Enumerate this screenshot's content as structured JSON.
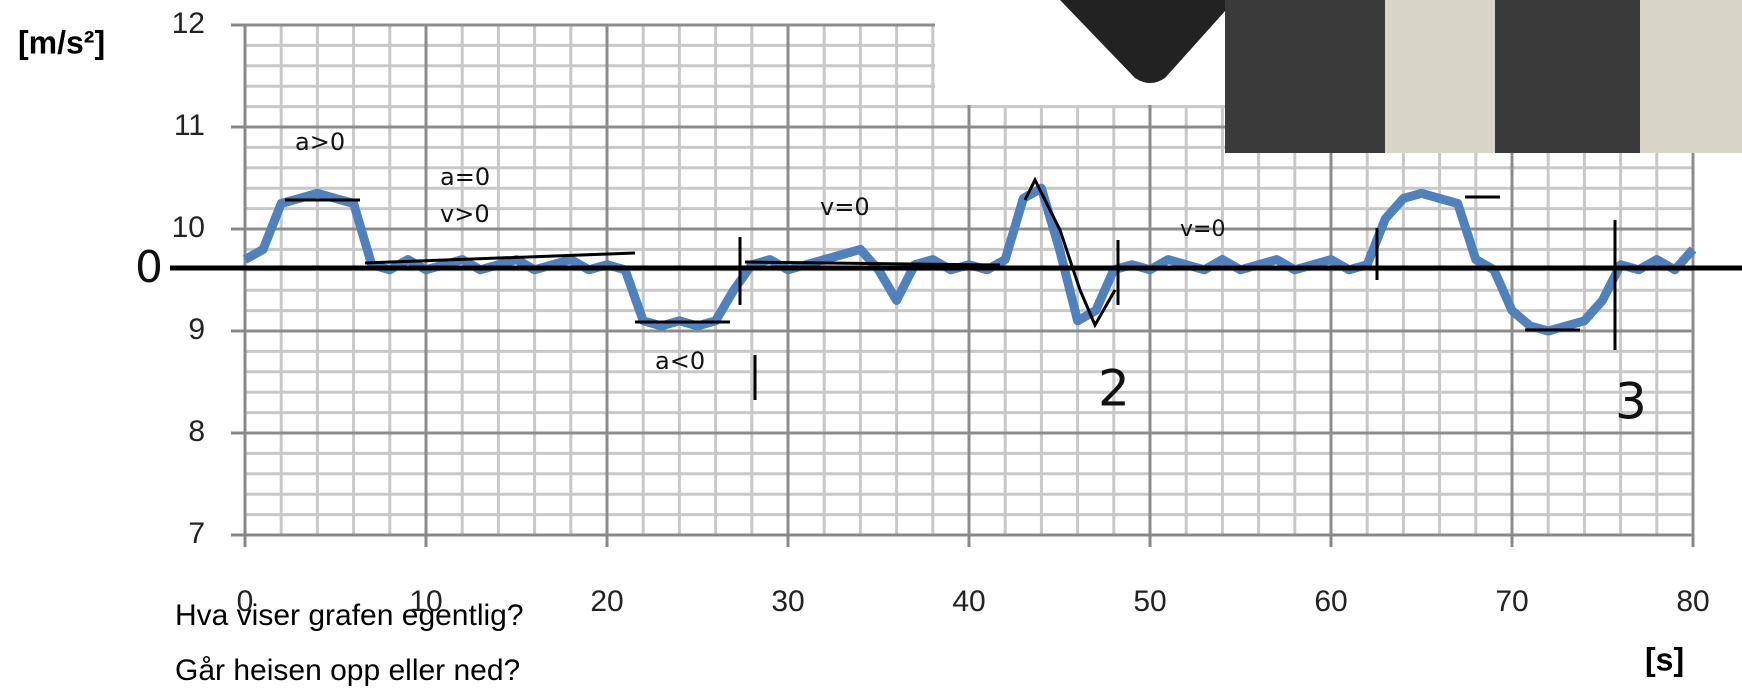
{
  "chart_data": {
    "type": "line",
    "y_label": "[m/s²]",
    "x_label": "[s]",
    "x": [
      0,
      1,
      2,
      3,
      4,
      5,
      6,
      7,
      8,
      9,
      10,
      11,
      12,
      13,
      14,
      15,
      16,
      17,
      18,
      19,
      20,
      21,
      22,
      23,
      24,
      25,
      26,
      27,
      28,
      29,
      30,
      31,
      32,
      33,
      34,
      35,
      36,
      37,
      38,
      39,
      40,
      41,
      42,
      43,
      44,
      45,
      46,
      47,
      48,
      49,
      50,
      51,
      52,
      53,
      54,
      55,
      56,
      57,
      58,
      59,
      60,
      61,
      62,
      63,
      64,
      65,
      66,
      67,
      68,
      69,
      70,
      71,
      72,
      73,
      74,
      75,
      76,
      77,
      78,
      79,
      80
    ],
    "series": [
      {
        "color": "#4f81bd",
        "values": [
          9.7,
          9.8,
          10.25,
          10.3,
          10.35,
          10.3,
          10.25,
          9.65,
          9.6,
          9.7,
          9.6,
          9.65,
          9.7,
          9.6,
          9.65,
          9.7,
          9.6,
          9.65,
          9.7,
          9.6,
          9.65,
          9.6,
          9.1,
          9.05,
          9.1,
          9.05,
          9.1,
          9.4,
          9.65,
          9.7,
          9.6,
          9.65,
          9.7,
          9.75,
          9.8,
          9.6,
          9.3,
          9.65,
          9.7,
          9.6,
          9.65,
          9.6,
          9.7,
          10.3,
          10.4,
          9.8,
          9.1,
          9.2,
          9.6,
          9.65,
          9.6,
          9.7,
          9.65,
          9.6,
          9.7,
          9.6,
          9.65,
          9.7,
          9.6,
          9.65,
          9.7,
          9.6,
          9.65,
          10.1,
          10.3,
          10.35,
          10.3,
          10.25,
          9.7,
          9.6,
          9.2,
          9.05,
          9.0,
          9.05,
          9.1,
          9.3,
          9.65,
          9.6,
          9.7,
          9.6,
          9.8
        ]
      }
    ],
    "xlim": [
      0,
      80
    ],
    "ylim": [
      7,
      12
    ],
    "xticks": [
      0,
      10,
      20,
      30,
      40,
      50,
      60,
      70,
      80
    ],
    "yticks": [
      7,
      8,
      9,
      10,
      11,
      12
    ],
    "grid": true,
    "annotations": [
      "a>0",
      "a=0",
      "v>0",
      "v=0",
      "a<0",
      "v=0",
      "0",
      "2",
      "3"
    ]
  },
  "questions": [
    "Hva viser grafen egentlig?",
    "Går heisen opp eller ned?"
  ]
}
